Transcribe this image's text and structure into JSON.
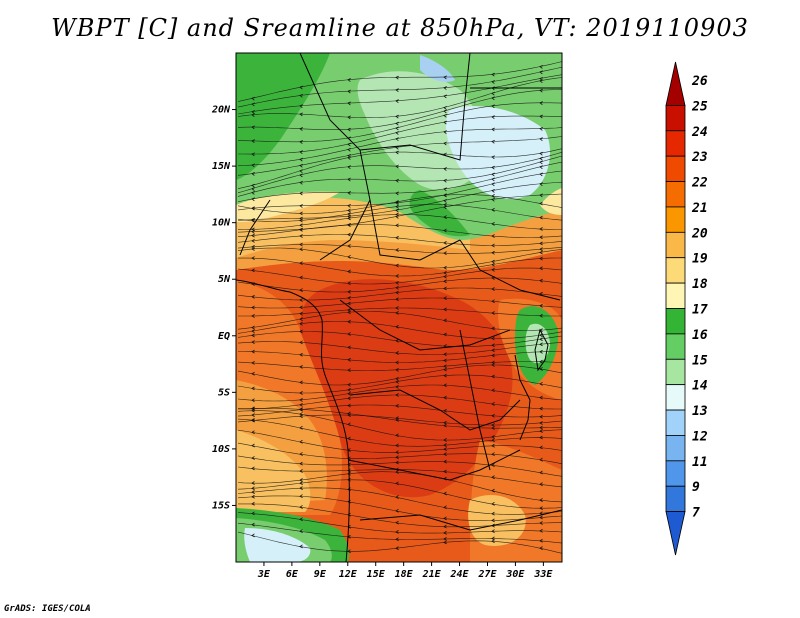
{
  "title": "WBPT [C] and Sreamline at 850hPa, VT: 2019110903",
  "footer": "GrADS: IGES/COLA",
  "map": {
    "lat_labels": [
      "20N",
      "15N",
      "10N",
      "5N",
      "EQ",
      "5S",
      "10S",
      "15S"
    ],
    "lat_values": [
      20,
      15,
      10,
      5,
      0,
      -5,
      -10,
      -15
    ],
    "lon_labels": [
      "3E",
      "6E",
      "9E",
      "12E",
      "15E",
      "18E",
      "21E",
      "24E",
      "27E",
      "30E",
      "33E"
    ],
    "lon_values": [
      3,
      6,
      9,
      12,
      15,
      18,
      21,
      24,
      27,
      30,
      33
    ],
    "lon_range": [
      0,
      35
    ],
    "lat_range": [
      -20,
      25
    ],
    "variable": "Wet-bulb potential temperature (C)",
    "overlay": "Streamlines at 850hPa",
    "valid_time": "2019110903"
  },
  "colorbar": {
    "levels": [
      "26",
      "25",
      "24",
      "23",
      "22",
      "21",
      "20",
      "19",
      "18",
      "17",
      "16",
      "15",
      "14",
      "13",
      "12",
      "11",
      "9",
      "7"
    ],
    "colors": [
      "#a50000",
      "#c80f00",
      "#e62800",
      "#f04a00",
      "#f56c00",
      "#fa9600",
      "#fab848",
      "#fcda78",
      "#fff5b4",
      "#34b434",
      "#64cd64",
      "#a6e6a0",
      "#e6fafa",
      "#a0d2fa",
      "#78b4f0",
      "#5096eb",
      "#3278dc",
      "#1e5ad2"
    ]
  },
  "legend": {
    "colors": {
      "c24": "#dc3c14",
      "c23": "#e85a1a",
      "c22": "#f07828",
      "c21": "#f5a040",
      "c20": "#f8c060",
      "c18": "#fde8a0",
      "c17": "#3cb43c",
      "c16": "#78cd6e",
      "c15": "#b4e6b4",
      "c14": "#d6f0fa",
      "c13": "#a8d0f0"
    }
  }
}
